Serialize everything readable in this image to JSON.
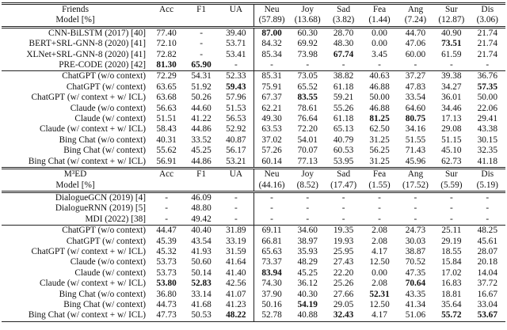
{
  "sections": [
    {
      "title": "Friends",
      "model_label": "Model [%]",
      "columns": [
        {
          "name": "Acc"
        },
        {
          "name": "F1"
        },
        {
          "name": "UA"
        },
        {
          "name": "Neu",
          "share": "(57.89)"
        },
        {
          "name": "Joy",
          "share": "(13.68)"
        },
        {
          "name": "Sad",
          "share": "(3.82)"
        },
        {
          "name": "Fea",
          "share": "(1.44)"
        },
        {
          "name": "Ang",
          "share": "(7.24)"
        },
        {
          "name": "Sur",
          "share": "(12.87)"
        },
        {
          "name": "Dis",
          "share": "(3.06)"
        }
      ],
      "groups": [
        [
          {
            "model": "CNN-BiLSTM (2017) [40]",
            "values": [
              "77.40",
              "-",
              "39.40",
              "87.00",
              "60.30",
              "28.70",
              "0.00",
              "44.70",
              "40.90",
              "21.74"
            ]
          },
          {
            "model": "BERT+SRL-GNN-8 (2020) [41]",
            "values": [
              "72.10",
              "-",
              "53.71",
              "84.32",
              "69.92",
              "48.30",
              "0.00",
              "47.06",
              "73.51",
              "21.74"
            ]
          },
          {
            "model": "XLNet+SRL-GNN-8 (2020) [41]",
            "values": [
              "72.82",
              "-",
              "53.41",
              "85.34",
              "73.98",
              "67.74",
              "3.45",
              "60.00",
              "61.59",
              "21.74"
            ]
          },
          {
            "model": "PRE-CODE (2020) [42]",
            "values": [
              "81.30",
              "65.90",
              "-",
              "-",
              "-",
              "-",
              "-",
              "-",
              "-",
              "-"
            ]
          }
        ],
        [
          {
            "model": "ChatGPT (w/o context)",
            "values": [
              "72.29",
              "54.31",
              "52.33",
              "85.31",
              "73.05",
              "38.82",
              "40.63",
              "37.27",
              "39.38",
              "36.76"
            ]
          },
          {
            "model": "ChatGPT (w/ context)",
            "values": [
              "63.65",
              "51.92",
              "59.43",
              "75.91",
              "65.52",
              "61.18",
              "46.88",
              "47.83",
              "34.27",
              "57.35"
            ]
          },
          {
            "model": "ChatGPT (w/ context + w/ ICL)",
            "values": [
              "63.68",
              "50.26",
              "57.96",
              "67.37",
              "83.55",
              "59.21",
              "50.00",
              "33.54",
              "36.01",
              "50.00"
            ]
          },
          {
            "model": "Claude (w/o context)",
            "values": [
              "56.63",
              "44.60",
              "51.53",
              "62.21",
              "78.61",
              "55.26",
              "46.88",
              "64.60",
              "34.46",
              "22.06"
            ]
          },
          {
            "model": "Claude (w/ context)",
            "values": [
              "51.51",
              "41.22",
              "56.53",
              "49.30",
              "76.64",
              "61.18",
              "81.25",
              "80.75",
              "17.13",
              "29.41"
            ]
          },
          {
            "model": "Claude (w/ context + w/ ICL)",
            "values": [
              "58.43",
              "44.86",
              "52.92",
              "63.53",
              "72.20",
              "65.13",
              "62.50",
              "34.16",
              "29.08",
              "43.38"
            ]
          },
          {
            "model": "Bing Chat (w/o context)",
            "values": [
              "40.31",
              "33.52",
              "40.87",
              "37.02",
              "54.01",
              "40.79",
              "31.25",
              "51.55",
              "51.15",
              "30.15"
            ]
          },
          {
            "model": "Bing Chat (w/ context)",
            "values": [
              "55.62",
              "45.25",
              "56.17",
              "57.26",
              "70.07",
              "60.53",
              "56.25",
              "71.43",
              "45.10",
              "32.35"
            ]
          },
          {
            "model": "Bing Chat (w/ context + w/ ICL)",
            "values": [
              "56.91",
              "44.86",
              "53.21",
              "60.14",
              "77.13",
              "53.95",
              "31.25",
              "45.96",
              "62.73",
              "41.18"
            ]
          }
        ]
      ]
    },
    {
      "title": "M³ED",
      "model_label": "Model [%]",
      "columns": [
        {
          "name": "Acc"
        },
        {
          "name": "F1"
        },
        {
          "name": "UA"
        },
        {
          "name": "Neu",
          "share": "(44.16)"
        },
        {
          "name": "Joy",
          "share": "(8.52)"
        },
        {
          "name": "Sad",
          "share": "(17.47)"
        },
        {
          "name": "Fea",
          "share": "(1.55)"
        },
        {
          "name": "Ang",
          "share": "(17.52)"
        },
        {
          "name": "Sur",
          "share": "(5.59)"
        },
        {
          "name": "Dis",
          "share": "(5.19)"
        }
      ],
      "groups": [
        [
          {
            "model": "DialogueGCN (2019) [4]",
            "values": [
              "-",
              "46.09",
              "-",
              "-",
              "-",
              "-",
              "-",
              "-",
              "-",
              "-"
            ]
          },
          {
            "model": "DialogueRNN (2019) [5]",
            "values": [
              "-",
              "48.80",
              "-",
              "-",
              "-",
              "-",
              "-",
              "-",
              "-",
              "-"
            ]
          },
          {
            "model": "MDI (2022) [38]",
            "values": [
              "-",
              "49.42",
              "-",
              "-",
              "-",
              "-",
              "-",
              "-",
              "-",
              "-"
            ]
          }
        ],
        [
          {
            "model": "ChatGPT (w/o context)",
            "values": [
              "44.47",
              "40.40",
              "31.89",
              "69.11",
              "34.60",
              "19.35",
              "2.08",
              "24.73",
              "25.11",
              "48.25"
            ]
          },
          {
            "model": "ChatGPT (w/ context)",
            "values": [
              "45.39",
              "43.54",
              "33.19",
              "66.81",
              "38.97",
              "19.93",
              "2.08",
              "30.03",
              "29.19",
              "45.61"
            ]
          },
          {
            "model": "ChatGPT (w/ context + w/ ICL)",
            "values": [
              "45.32",
              "41.93",
              "31.59",
              "65.63",
              "35.93",
              "25.95",
              "4.17",
              "38.87",
              "18.55",
              "28.07"
            ]
          },
          {
            "model": "Claude (w/o context)",
            "values": [
              "53.73",
              "50.60",
              "41.64",
              "73.37",
              "48.29",
              "27.43",
              "12.50",
              "70.52",
              "15.84",
              "20.18"
            ]
          },
          {
            "model": "Claude (w/ context)",
            "values": [
              "53.73",
              "50.14",
              "41.40",
              "83.94",
              "45.25",
              "22.20",
              "0.00",
              "47.35",
              "17.02",
              "14.04"
            ]
          },
          {
            "model": "Claude (w/ context + w/ ICL)",
            "values": [
              "53.80",
              "52.83",
              "42.56",
              "74.30",
              "36.12",
              "25.26",
              "2.08",
              "70.64",
              "16.83",
              "37.72"
            ]
          },
          {
            "model": "Bing Chat (w/o context)",
            "values": [
              "36.80",
              "33.14",
              "41.07",
              "37.90",
              "40.30",
              "27.66",
              "52.31",
              "43.35",
              "18.81",
              "16.67"
            ]
          },
          {
            "model": "Bing Chat (w/ context)",
            "values": [
              "44.73",
              "41.68",
              "41.23",
              "50.16",
              "54.19",
              "29.05",
              "12.50",
              "41.34",
              "35.64",
              "33.04"
            ]
          },
          {
            "model": "Bing Chat (w/ context + w/ ICL)",
            "values": [
              "47.73",
              "50.53",
              "48.22",
              "52.78",
              "40.88",
              "32.43",
              "4.17",
              "51.06",
              "55.72",
              "53.67"
            ]
          }
        ]
      ]
    }
  ]
}
